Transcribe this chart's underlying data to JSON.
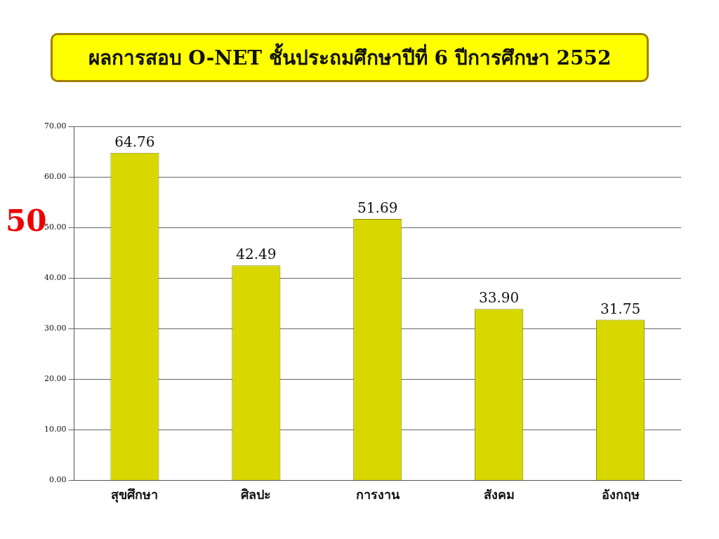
{
  "chart_data": {
    "type": "bar",
    "title": "ผลการสอบ O-NET ชั้นประถมศึกษาปีที่ 6  ปีการศึกษา 2552",
    "categories": [
      "สุขศึกษา",
      "ศิลปะ",
      "การงาน",
      "สังคม",
      "อังกฤษ"
    ],
    "values": [
      64.76,
      42.49,
      51.69,
      33.9,
      31.75
    ],
    "value_labels": [
      "64.76",
      "42.49",
      "51.69",
      "33.90",
      "31.75"
    ],
    "color": "#d8d800",
    "ylim": [
      0,
      70
    ],
    "yticks": [
      {
        "value": 0,
        "label": "0.00"
      },
      {
        "value": 10,
        "label": "10.00"
      },
      {
        "value": 20,
        "label": "20.00"
      },
      {
        "value": 30,
        "label": "30.00"
      },
      {
        "value": 40,
        "label": "40.00"
      },
      {
        "value": 50,
        "label": "50.00"
      },
      {
        "value": 60,
        "label": "60.00"
      },
      {
        "value": 70,
        "label": "70.00"
      }
    ],
    "grid": "y",
    "legend": false,
    "annotations": [
      "50"
    ]
  }
}
